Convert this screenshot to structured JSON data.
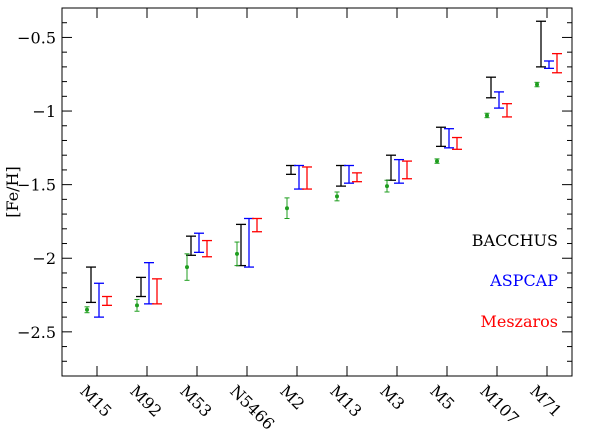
{
  "chart_data": {
    "type": "scatter",
    "subtype": "errorbar",
    "title": "",
    "xlabel": "",
    "ylabel": "[Fe/H]",
    "ylim": [
      -2.8,
      -0.3
    ],
    "yticks": [
      -2.5,
      -2,
      -1.5,
      -1,
      -0.5
    ],
    "yticklabels": [
      "−2.5",
      "−2",
      "−1.5",
      "−1",
      "−0.5"
    ],
    "categories": [
      "M15",
      "M92",
      "M53",
      "N5466",
      "M2",
      "M13",
      "M3",
      "M5",
      "M107",
      "M71"
    ],
    "grid": false,
    "legend_position": "lower-right",
    "series": [
      {
        "name": "BACCHUS",
        "color": "#000000",
        "style": "range",
        "ranges": [
          [
            -2.3,
            -2.06
          ],
          [
            -2.26,
            -2.13
          ],
          [
            -1.98,
            -1.85
          ],
          [
            -2.05,
            -1.77
          ],
          [
            -1.43,
            -1.37
          ],
          [
            -1.51,
            -1.37
          ],
          [
            -1.47,
            -1.3
          ],
          [
            -1.24,
            -1.11
          ],
          [
            -0.91,
            -0.77
          ],
          [
            -0.7,
            -0.39
          ]
        ]
      },
      {
        "name": "ASPCAP",
        "color": "#0000ff",
        "style": "range",
        "ranges": [
          [
            -2.4,
            -2.17
          ],
          [
            -2.31,
            -2.03
          ],
          [
            -1.96,
            -1.83
          ],
          [
            -2.06,
            -1.73
          ],
          [
            -1.53,
            -1.37
          ],
          [
            -1.49,
            -1.37
          ],
          [
            -1.49,
            -1.33
          ],
          [
            -1.25,
            -1.12
          ],
          [
            -0.98,
            -0.87
          ],
          [
            -0.71,
            -0.66
          ]
        ]
      },
      {
        "name": "Meszaros",
        "color": "#ff0000",
        "style": "range",
        "ranges": [
          [
            -2.32,
            -2.26
          ],
          [
            -2.31,
            -2.14
          ],
          [
            -1.99,
            -1.88
          ],
          [
            -1.82,
            -1.73
          ],
          [
            -1.53,
            -1.38
          ],
          [
            -1.48,
            -1.42
          ],
          [
            -1.46,
            -1.34
          ],
          [
            -1.26,
            -1.18
          ],
          [
            -1.04,
            -0.95
          ],
          [
            -0.74,
            -0.61
          ]
        ]
      },
      {
        "name": "",
        "color": "#1f9e1f",
        "style": "point",
        "values": [
          -2.35,
          -2.32,
          -2.06,
          -1.97,
          -1.66,
          -1.58,
          -1.51,
          -1.34,
          -1.03,
          -0.82
        ],
        "errors": [
          0.02,
          0.04,
          0.09,
          0.08,
          0.07,
          0.03,
          0.04,
          0.015,
          0.015,
          0.015
        ]
      }
    ]
  }
}
